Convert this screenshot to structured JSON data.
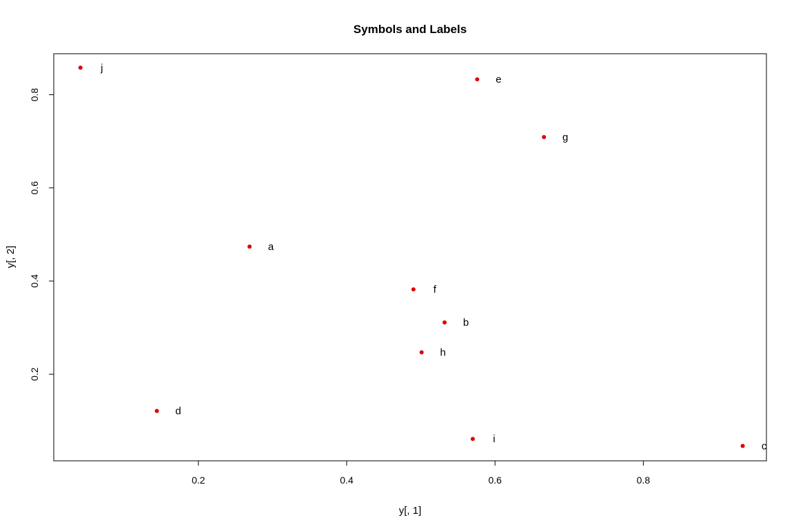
{
  "chart_data": {
    "type": "scatter",
    "title": "Symbols and Labels",
    "xlabel": "y[, 1]",
    "ylabel": "y[, 2]",
    "xlim": [
      0.005,
      0.966
    ],
    "ylim": [
      0.014,
      0.888
    ],
    "xticks": [
      0.2,
      0.4,
      0.6,
      0.8
    ],
    "xtick_labels": [
      "0.2",
      "0.4",
      "0.6",
      "0.8"
    ],
    "yticks": [
      0.2,
      0.4,
      0.6,
      0.8
    ],
    "ytick_labels": [
      "0.2",
      "0.4",
      "0.6",
      "0.8"
    ],
    "grid": false,
    "point_color": "#e00000",
    "points": [
      {
        "label": "a",
        "x": 0.269,
        "y": 0.474
      },
      {
        "label": "b",
        "x": 0.532,
        "y": 0.311
      },
      {
        "label": "c",
        "x": 0.934,
        "y": 0.046
      },
      {
        "label": "d",
        "x": 0.144,
        "y": 0.121
      },
      {
        "label": "e",
        "x": 0.576,
        "y": 0.833
      },
      {
        "label": "f",
        "x": 0.49,
        "y": 0.382
      },
      {
        "label": "g",
        "x": 0.666,
        "y": 0.709
      },
      {
        "label": "h",
        "x": 0.501,
        "y": 0.247
      },
      {
        "label": "i",
        "x": 0.57,
        "y": 0.061
      },
      {
        "label": "j",
        "x": 0.041,
        "y": 0.858
      }
    ]
  }
}
